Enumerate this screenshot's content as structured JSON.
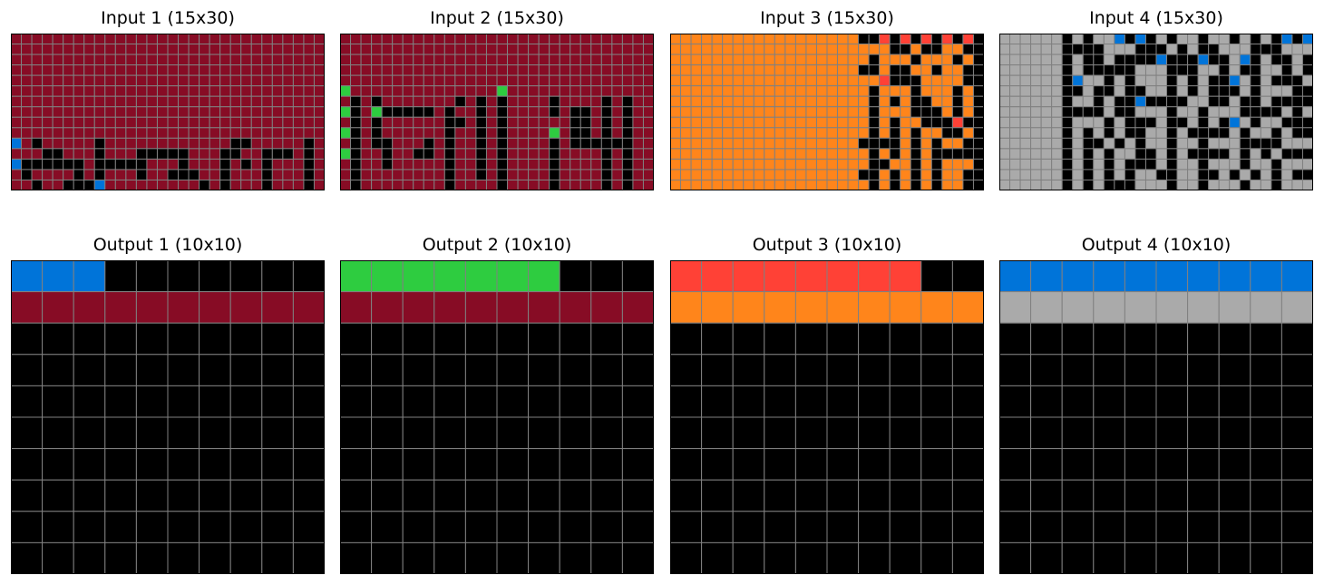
{
  "palette": {
    "0": "#000000",
    "1": "#0074D9",
    "2": "#FF4136",
    "3": "#2ECC40",
    "4": "#FFDC00",
    "5": "#AAAAAA",
    "6": "#F012BE",
    "7": "#FF851B",
    "8": "#7FDBFF",
    "9": "#870C25"
  },
  "grid_line_color": "#808080",
  "panels": [
    {
      "title": "Input 1 (15x30)",
      "rows": [
        "999999999999999999999999999999",
        "999999999999999999999999999999",
        "999999999999999999999999999999",
        "999999999999999999999999999999",
        "999999999999999999999999999999",
        "999999999999999999999999999999",
        "999999999999999999999999999999",
        "999999999999999999999999999999",
        "999999999999999999999999999999",
        "999999999999999999999999999999",
        "190999990999999999999009999909",
        "999009990999000009990099000909",
        "100000090000099909990909099909",
        "909999090999099000990999099909",
        "990990001999999999090999099909"
      ]
    },
    {
      "title": "Input 2 (15x30)",
      "rows": [
        "999999999999999999999999999999",
        "999999999999999999999999999999",
        "999999999999999999999999999999",
        "999999999999999999999999999999",
        "999999999999999999999999999999",
        "399999999999999399999999999999",
        "909099999990909099990999909099",
        "309300000909909099990900909099",
        "909099999900909099999900909099",
        "309099999909909099993900909099",
        "909009990909909099990900000099",
        "309909900909909099990999909099",
        "909909999909909099990999909099",
        "909999999909909099990999909099",
        "909999999909999099990999909099"
      ]
    },
    {
      "title": "Input 3 (15x30)",
      "rows": [
        "777777777777777777002020202020",
        "777777777777777777777007007700",
        "777777777777777777707770777070",
        "777777777777777777007007707700",
        "777777777777777777772000777700",
        "777777777777777777707770777070",
        "777777777777777777707070077070",
        "777777777777777777707770007070",
        "777777777777777777707077000200",
        "777777777777777777707070770070",
        "777777777777777777000070707700",
        "777777777777777777707070700000",
        "777777777777777777700770707770",
        "777777777777777777007070707700",
        "777777777777777777707070707700"
      ]
    },
    {
      "title": "Input 4 (15x30)",
      "rows": [
        "555555050551010505505505050101",
        "555555000055500050500555000555",
        "555555050050000100010051050050",
        "555555050000055500055050055050",
        "555555015505055505050015050005",
        "555555005005005505050005055500",
        "555555055050010000550050050000",
        "555555000050055505505550000505",
        "555555055505000500505015055000",
        "555555050505005505000050550500",
        "555555050050505505505550000555",
        "555555050505500505000050505000",
        "555555050505000505505550550555",
        "555555050505055005500505050500",
        "555555050500055505505550550555"
      ]
    },
    {
      "title": "Output 1 (10x10)",
      "rows": [
        "1110000000",
        "9999999999",
        "0000000000",
        "0000000000",
        "0000000000",
        "0000000000",
        "0000000000",
        "0000000000",
        "0000000000",
        "0000000000"
      ]
    },
    {
      "title": "Output 2 (10x10)",
      "rows": [
        "3333333000",
        "9999999999",
        "0000000000",
        "0000000000",
        "0000000000",
        "0000000000",
        "0000000000",
        "0000000000",
        "0000000000",
        "0000000000"
      ]
    },
    {
      "title": "Output 3 (10x10)",
      "rows": [
        "2222222200",
        "7777777777",
        "0000000000",
        "0000000000",
        "0000000000",
        "0000000000",
        "0000000000",
        "0000000000",
        "0000000000",
        "0000000000"
      ]
    },
    {
      "title": "Output 4 (10x10)",
      "rows": [
        "1111111111",
        "5555555555",
        "0000000000",
        "0000000000",
        "0000000000",
        "0000000000",
        "0000000000",
        "0000000000",
        "0000000000",
        "0000000000"
      ]
    }
  ]
}
